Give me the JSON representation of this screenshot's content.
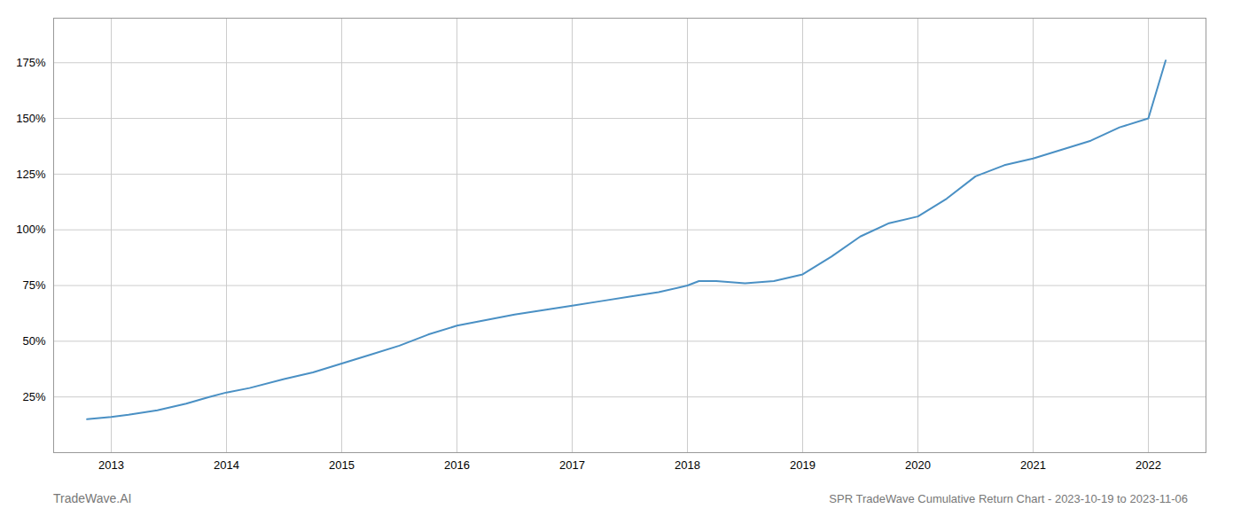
{
  "chart_data": {
    "type": "line",
    "title": "SPR TradeWave Cumulative Return Chart - 2023-10-19 to 2023-11-06",
    "annotations": [
      "TradeWave.AI"
    ],
    "color": "#4a90c4",
    "grid": true,
    "x": [
      2012.79,
      2013.0,
      2013.15,
      2013.4,
      2013.65,
      2013.85,
      2014.0,
      2014.2,
      2014.5,
      2014.75,
      2015.0,
      2015.25,
      2015.5,
      2015.75,
      2016.0,
      2016.2,
      2016.5,
      2016.75,
      2017.0,
      2017.25,
      2017.5,
      2017.75,
      2018.0,
      2018.1,
      2018.25,
      2018.5,
      2018.75,
      2019.0,
      2019.25,
      2019.5,
      2019.75,
      2020.0,
      2020.25,
      2020.5,
      2020.75,
      2021.0,
      2021.25,
      2021.5,
      2021.75,
      2022.0,
      2022.15
    ],
    "values": [
      15,
      16,
      17,
      19,
      22,
      25,
      27,
      29,
      33,
      36,
      40,
      44,
      48,
      53,
      57,
      59,
      62,
      64,
      66,
      68,
      70,
      72,
      75,
      77,
      77,
      76,
      77,
      80,
      88,
      97,
      103,
      106,
      114,
      124,
      129,
      132,
      136,
      140,
      146,
      150,
      176
    ],
    "xlim": [
      2012.5,
      2022.5
    ],
    "xticks": [
      2013,
      2014,
      2015,
      2016,
      2017,
      2018,
      2019,
      2020,
      2021,
      2022
    ],
    "ylim": [
      0,
      195
    ],
    "yticks": [
      {
        "value": 25,
        "label": "25%"
      },
      {
        "value": 50,
        "label": "50%"
      },
      {
        "value": 75,
        "label": "75%"
      },
      {
        "value": 100,
        "label": "100%"
      },
      {
        "value": 125,
        "label": "125%"
      },
      {
        "value": 150,
        "label": "150%"
      },
      {
        "value": 175,
        "label": "175%"
      }
    ]
  }
}
